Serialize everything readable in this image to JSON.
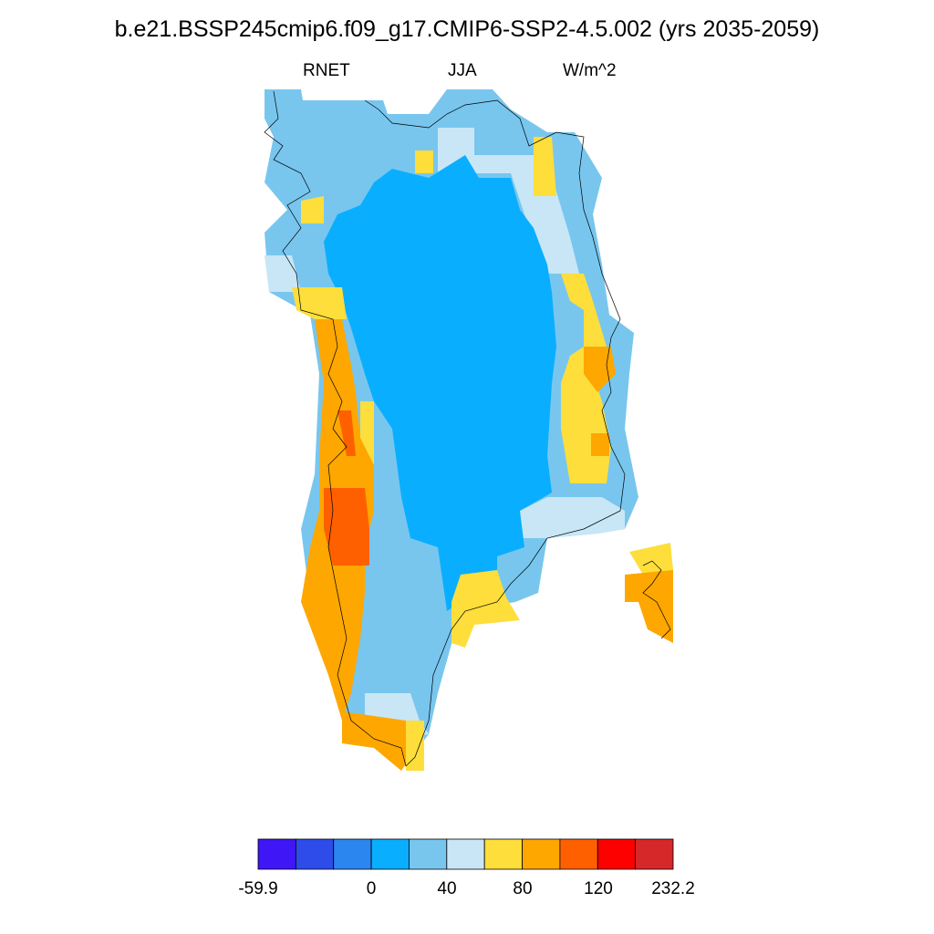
{
  "title": "b.e21.BSSP245cmip6.f09_g17.CMIP6-SSP2-4.5.002 (yrs 2035-2059)",
  "subtitle": {
    "left": "RNET",
    "center": "JJA",
    "right": "W/m^2"
  },
  "colorbar": {
    "colors": [
      "#3f16f5",
      "#2e4cea",
      "#2b86f0",
      "#0aaefe",
      "#78c6ee",
      "#c8e6f6",
      "#fede3b",
      "#fea700",
      "#fe6000",
      "#fd0000",
      "#d62828"
    ],
    "labels": [
      "-59.9",
      "0",
      "40",
      "80",
      "120",
      "232.2"
    ]
  },
  "map": {
    "region": "Greenland",
    "legend": {
      "interior": "#0aaefe",
      "inner_ring": "#78c6ee",
      "outer_ring": "#c8e6f6",
      "coast_warm": "#fede3b",
      "coast_hot": "#fea700",
      "coast_hotter": "#fe6000"
    }
  }
}
